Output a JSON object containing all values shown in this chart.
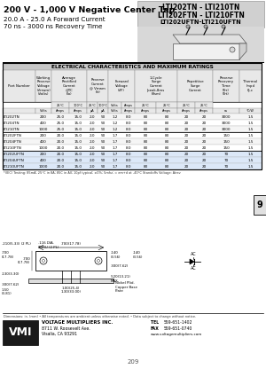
{
  "title_left_line1": "200 V - 1,000 V Negative Center Tap",
  "title_left_line2": "20.0 A - 25.0 A Forward Current",
  "title_left_line3": "70 ns - 3000 ns Recovery Time",
  "title_right_line1": "LTI202TN - LTI210TN",
  "title_right_line2": "LTI202FTN - LTI210FTN",
  "title_right_line3": "LTI202UFTN-LTI210UFTN",
  "table_header": "ELECTRICAL CHARACTERISTICS AND MAXIMUM RATINGS",
  "rows": [
    [
      "LTI202TN",
      "200",
      "25.0",
      "15.0",
      "2.0",
      "50",
      "1.2",
      "8.0",
      "80",
      "20",
      "3000",
      "1.5"
    ],
    [
      "LTI204TN",
      "400",
      "25.0",
      "15.0",
      "2.0",
      "50",
      "1.2",
      "8.0",
      "80",
      "20",
      "3000",
      "1.5"
    ],
    [
      "LTI210TN",
      "1000",
      "25.0",
      "15.0",
      "2.0",
      "50",
      "1.2",
      "8.0",
      "80",
      "20",
      "3000",
      "1.5"
    ],
    [
      "LTI202FTN",
      "200",
      "20.0",
      "15.0",
      "2.0",
      "50",
      "1.7",
      "8.0",
      "80",
      "20",
      "150",
      "1.5"
    ],
    [
      "LTI204FTN",
      "400",
      "20.0",
      "15.0",
      "2.0",
      "50",
      "1.7",
      "8.0",
      "80",
      "20",
      "150",
      "1.5"
    ],
    [
      "LTI210FTN",
      "1000",
      "20.0",
      "15.0",
      "2.0",
      "50",
      "1.7",
      "8.0",
      "80",
      "20",
      "150",
      "1.5"
    ],
    [
      "LTI202UFTN",
      "200",
      "20.0",
      "15.0",
      "2.0",
      "50",
      "1.7",
      "8.0",
      "80",
      "20",
      "70",
      "1.5"
    ],
    [
      "LTI204UFTN",
      "400",
      "20.0",
      "15.0",
      "2.0",
      "50",
      "1.7",
      "8.0",
      "80",
      "20",
      "70",
      "1.5"
    ],
    [
      "LTI210UFTN",
      "1000",
      "20.0",
      "15.0",
      "2.0",
      "50",
      "1.7",
      "8.0",
      "80",
      "20",
      "70",
      "1.5"
    ]
  ],
  "footnote": "*(IEC) Testing: 85mA; 25°C in 8A; 85C in All; 10pf typical; ±0%; 5mhz; = em+d at -40°C Standoffs Voltage: Airev",
  "dim_note": "Dimensions: in. (mm) • All temperatures are ambient unless otherwise noted. • Data subject to change without notice.",
  "company": "VOLTAGE MULTIPLIERS INC.",
  "address": "8711 W. Roosevelt Ave.",
  "city": "Visalia, CA 93291",
  "tel_label": "TEL",
  "tel": "559-651-1402",
  "fax_label": "FAX",
  "fax": "559-651-0740",
  "web": "www.voltagemultipliers.com",
  "page_num": "209",
  "section_num": "9",
  "bg_color": "#ffffff",
  "table_header_bg": "#c8c8c8",
  "col_header_bg": "#e8e8e8",
  "highlight_rows": [
    6,
    7,
    8
  ],
  "highlight_color": "#dce8f8",
  "pkg_bg": "#d8d8d8",
  "title_right_bg": "#d0d0d0"
}
